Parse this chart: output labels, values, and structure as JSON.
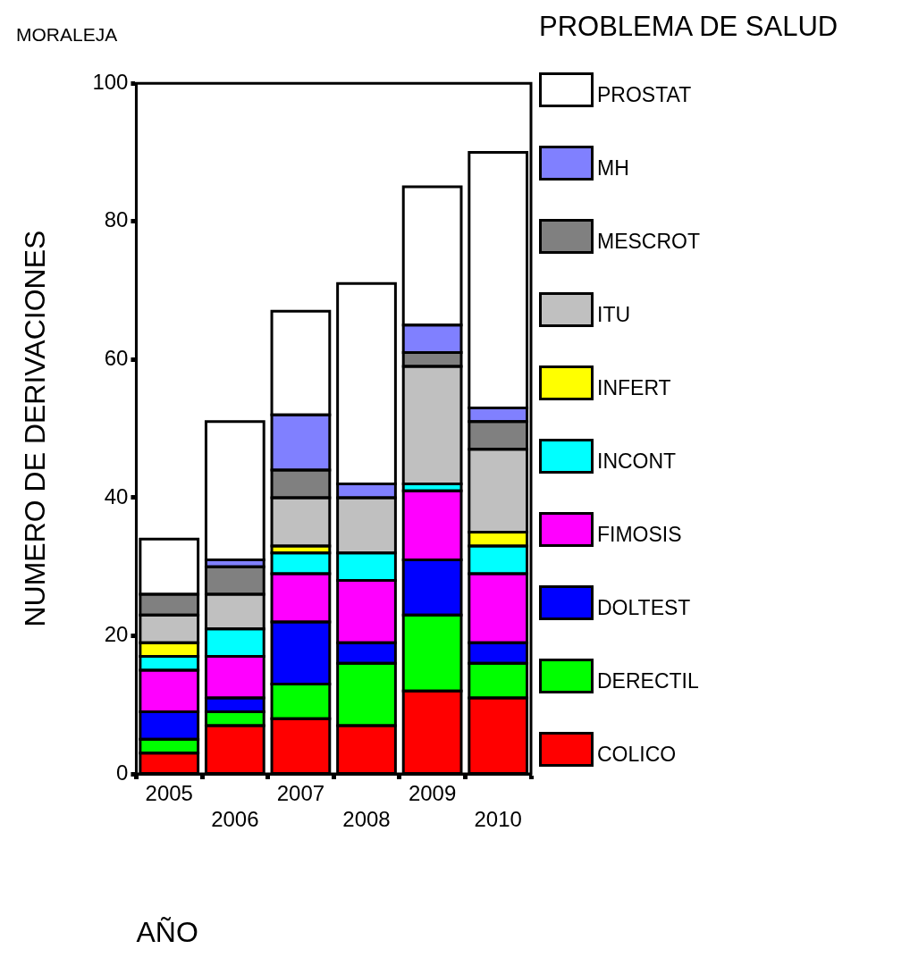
{
  "chart_data": {
    "type": "bar",
    "stacked": true,
    "title": "MORALEJA",
    "legend_title": "PROBLEMA DE SALUD",
    "xlabel": "AÑO",
    "ylabel": "NUMERO DE DERIVACIONES",
    "categories": [
      "2005",
      "2006",
      "2007",
      "2008",
      "2009",
      "2010"
    ],
    "ylim": [
      0,
      100
    ],
    "yticks": [
      0,
      20,
      40,
      60,
      80,
      100
    ],
    "grid": false,
    "legend": "right",
    "series": [
      {
        "name": "COLICO",
        "color": "#ff0000",
        "values": [
          3,
          7,
          8,
          7,
          12,
          11
        ]
      },
      {
        "name": "DERECTIL",
        "color": "#00ff00",
        "values": [
          2,
          2,
          5,
          9,
          11,
          5
        ]
      },
      {
        "name": "DOLTEST",
        "color": "#0000ff",
        "values": [
          4,
          2,
          9,
          3,
          8,
          3
        ]
      },
      {
        "name": "FIMOSIS",
        "color": "#ff00ff",
        "values": [
          6,
          6,
          7,
          9,
          10,
          10
        ]
      },
      {
        "name": "INCONT",
        "color": "#00ffff",
        "values": [
          2,
          4,
          3,
          4,
          1,
          4
        ]
      },
      {
        "name": "INFERT",
        "color": "#ffff00",
        "values": [
          2,
          0,
          1,
          0,
          0,
          2
        ]
      },
      {
        "name": "ITU",
        "color": "#c0c0c0",
        "values": [
          4,
          5,
          7,
          8,
          17,
          12
        ]
      },
      {
        "name": "MESCROT",
        "color": "#808080",
        "values": [
          3,
          4,
          4,
          0,
          2,
          4
        ]
      },
      {
        "name": "MH",
        "color": "#8080ff",
        "values": [
          0,
          1,
          8,
          2,
          4,
          2
        ]
      },
      {
        "name": "PROSTAT",
        "color": "#ffffff",
        "values": [
          8,
          20,
          15,
          29,
          20,
          37
        ]
      }
    ]
  }
}
